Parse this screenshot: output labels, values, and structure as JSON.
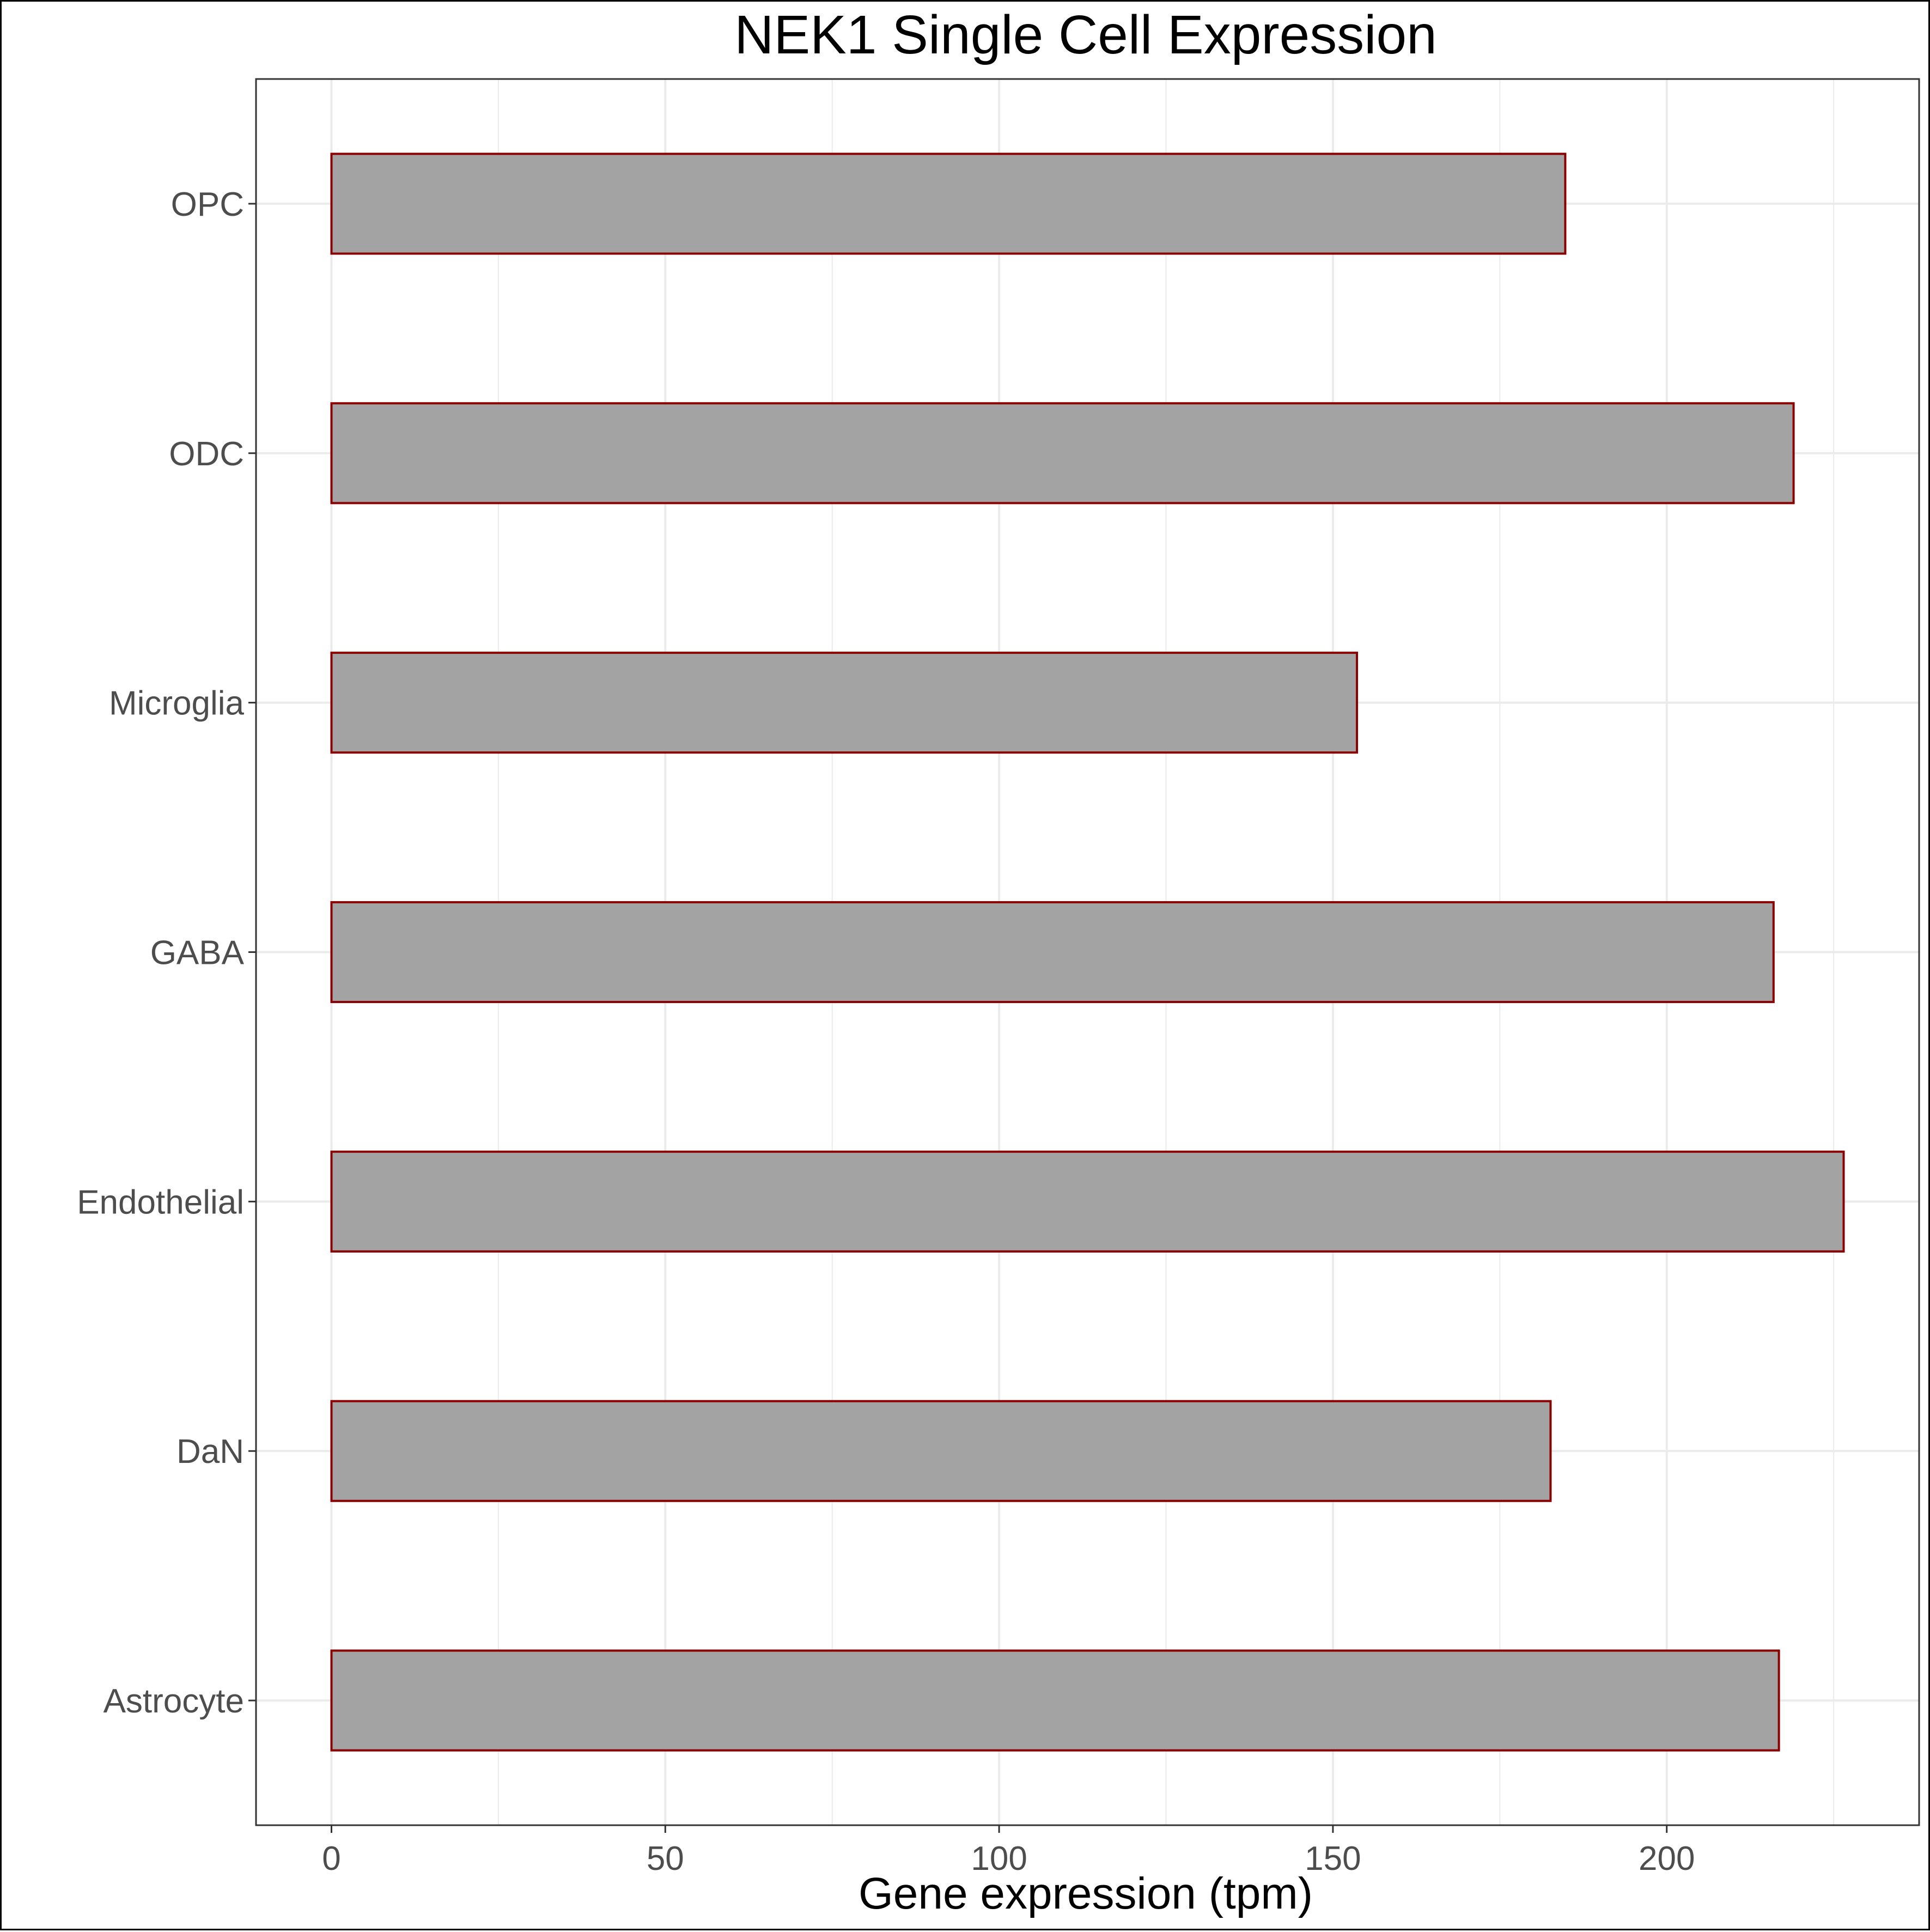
{
  "chart_data": {
    "type": "bar",
    "orientation": "horizontal",
    "title": "NEK1 Single Cell Expression",
    "xlabel": "Gene expression (tpm)",
    "ylabel": "",
    "categories": [
      "Astrocyte",
      "DaN",
      "Endothelial",
      "GABA",
      "Microglia",
      "ODC",
      "OPC"
    ],
    "values": [
      216.8,
      182.6,
      226.5,
      216.0,
      153.6,
      219.0,
      184.8
    ],
    "xlim": [
      -11.3,
      237.8
    ],
    "xticks": [
      0,
      50,
      100,
      150,
      200
    ],
    "xtick_labels": [
      "0",
      "50",
      "100",
      "150",
      "200"
    ],
    "grid": true,
    "legend": "none",
    "colors": {
      "bar_fill": "#a3a3a3",
      "bar_outline": "#8b0000",
      "gridline": "#ebebeb",
      "panel_border": "#333333",
      "tick_text": "#4d4d4d"
    }
  }
}
